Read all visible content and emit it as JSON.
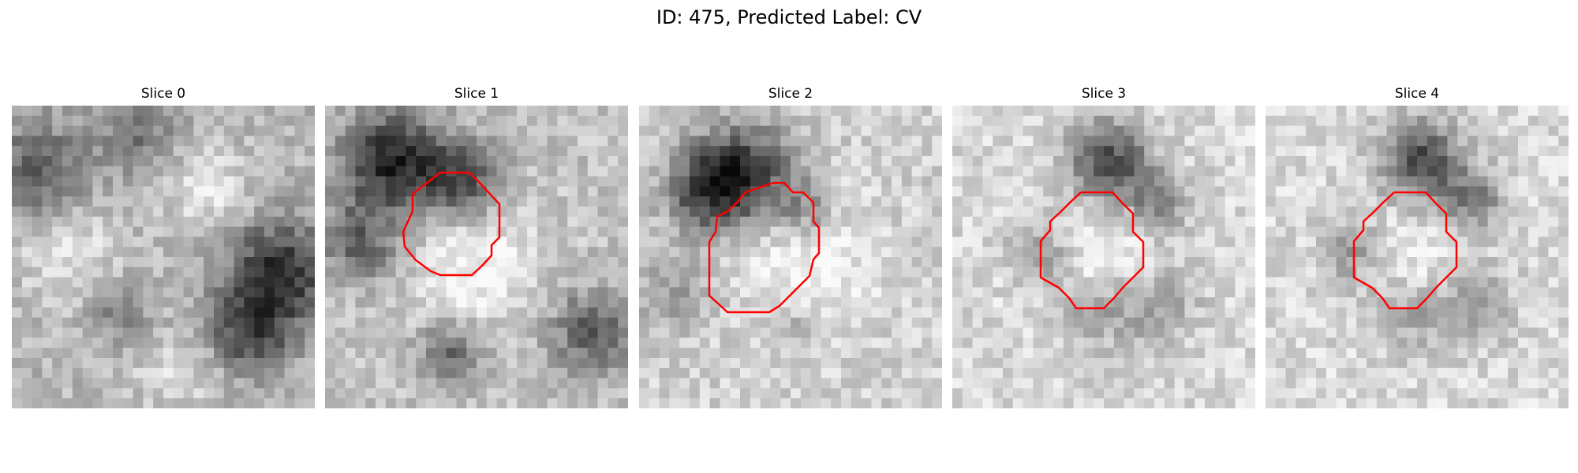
{
  "figure": {
    "title": "ID: 475, Predicted Label: CV",
    "outline_color": "#ff0000",
    "colormap": "grayscale",
    "slices": [
      {
        "label": "Slice 0",
        "has_outline": false
      },
      {
        "label": "Slice 1",
        "has_outline": true
      },
      {
        "label": "Slice 2",
        "has_outline": true
      },
      {
        "label": "Slice 3",
        "has_outline": true
      },
      {
        "label": "Slice 4",
        "has_outline": true
      }
    ]
  }
}
